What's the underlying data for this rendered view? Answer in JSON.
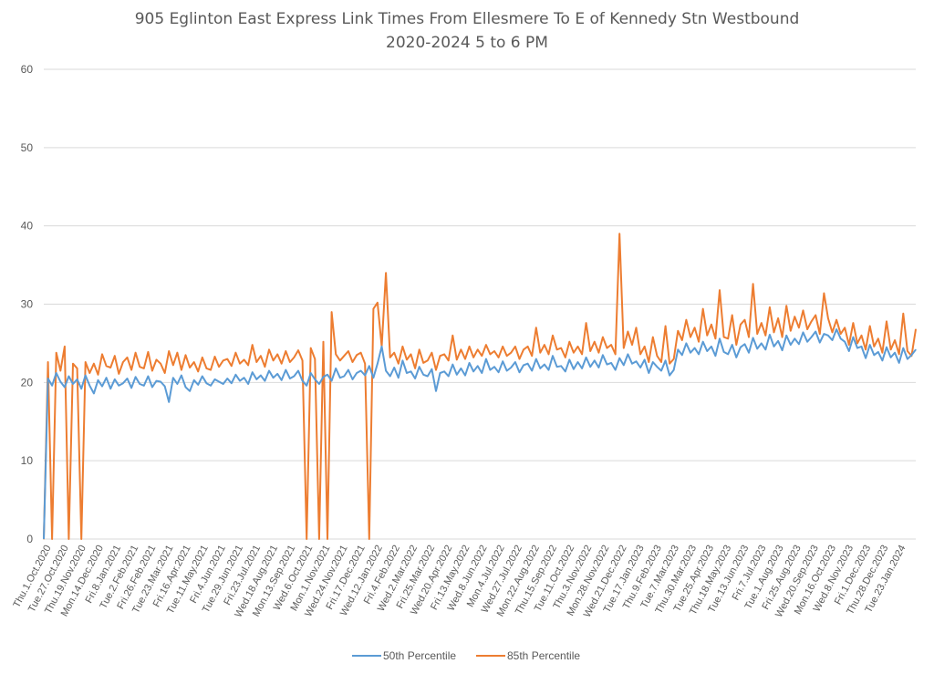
{
  "chart_data": {
    "type": "line",
    "title": "905 Eglinton East Express Link Times From Ellesmere To E of Kennedy Stn Westbound",
    "subtitle": "2020-2024 5 to 6 PM",
    "xlabel": "",
    "ylabel": "",
    "ylim": [
      0,
      60
    ],
    "yticks": [
      0,
      10,
      20,
      30,
      40,
      50,
      60
    ],
    "grid": true,
    "legend_position": "bottom",
    "colors": {
      "p50": "#5b9bd5",
      "p85": "#ed7d31",
      "grid": "#d9d9d9",
      "text": "#595959"
    },
    "x_tick_labels": [
      "Thu.1.Oct.2020",
      "Tue.27.Oct.2020",
      "Thu.19.Nov.2020",
      "Mon.14.Dec.2020",
      "Fri.8.Jan.2021",
      "Tue.2.Feb.2021",
      "Fri.26.Feb.2021",
      "Tue.23.Mar.2021",
      "Fri.16.Apr.2021",
      "Tue.11.May.2021",
      "Fri.4.Jun.2021",
      "Tue.29.Jun.2021",
      "Fri.23.Jul.2021",
      "Wed.18.Aug.2021",
      "Mon.13.Sep.2021",
      "Wed.6.Oct.2021",
      "Mon.1.Nov.2021",
      "Wed.24.Nov.2021",
      "Fri.17.Dec.2021",
      "Wed.12.Jan.2022",
      "Fri.4.Feb.2022",
      "Wed.2.Mar.2022",
      "Fri.25.Mar.2022",
      "Wed.20.Apr.2022",
      "Fri.13.May.2022",
      "Wed.8.Jun.2022",
      "Mon.4.Jul.2022",
      "Wed.27.Jul.2022",
      "Mon.22.Aug.2022",
      "Thu.15.Sep.2022",
      "Tue.11.Oct.2022",
      "Thu.3.Nov.2022",
      "Mon.28.Nov.2022",
      "Wed.21.Dec.2022",
      "Tue.17.Jan.2023",
      "Thu.9.Feb.2023",
      "Tue.7.Mar.2023",
      "Thu.30.Mar.2023",
      "Tue.25.Apr.2023",
      "Thu.18.May.2023",
      "Tue.13.Jun.2023",
      "Fri.7.Jul.2023",
      "Tue.1.Aug.2023",
      "Fri.25.Aug.2023",
      "Wed.20.Sep.2023",
      "Mon.16.Oct.2023",
      "Wed.8.Nov.2023",
      "Fri.1.Dec.2023",
      "Thu.28.Dec.2023",
      "Tue.23.Jan.2024"
    ],
    "points_per_tick": 4,
    "series": [
      {
        "name": "50th Percentile",
        "values": [
          0,
          20.5,
          19.6,
          21.2,
          20.1,
          19.4,
          20.8,
          19.8,
          20.4,
          19.2,
          20.9,
          19.6,
          18.6,
          20.3,
          19.5,
          20.6,
          19.2,
          20.4,
          19.6,
          19.9,
          20.5,
          19.3,
          20.7,
          19.8,
          19.6,
          20.8,
          19.4,
          20.2,
          20.1,
          19.5,
          17.5,
          20.6,
          19.8,
          20.9,
          19.4,
          18.9,
          20.3,
          19.7,
          20.8,
          19.9,
          19.6,
          20.4,
          20.1,
          19.8,
          20.5,
          19.9,
          21.0,
          20.2,
          20.6,
          19.8,
          21.3,
          20.4,
          20.9,
          20.2,
          21.5,
          20.6,
          21.1,
          20.3,
          21.6,
          20.5,
          20.8,
          21.5,
          20.2,
          19.6,
          21.2,
          20.4,
          19.8,
          20.7,
          21.0,
          20.2,
          21.8,
          20.6,
          20.8,
          21.6,
          20.4,
          21.2,
          21.5,
          20.9,
          22.1,
          20.6,
          22.4,
          24.6,
          21.5,
          20.8,
          21.9,
          20.6,
          22.8,
          21.2,
          21.4,
          20.5,
          22.0,
          21.0,
          20.8,
          21.7,
          18.9,
          21.2,
          21.4,
          20.8,
          22.3,
          21.0,
          21.8,
          20.9,
          22.5,
          21.4,
          22.1,
          21.2,
          23.0,
          21.6,
          22.0,
          21.3,
          22.7,
          21.5,
          21.9,
          22.6,
          21.3,
          22.2,
          22.4,
          21.5,
          23.0,
          21.8,
          22.3,
          21.6,
          23.4,
          22.0,
          22.1,
          21.4,
          22.9,
          21.7,
          22.6,
          21.8,
          23.2,
          22.0,
          22.8,
          21.9,
          23.5,
          22.3,
          22.5,
          21.6,
          23.1,
          22.2,
          23.6,
          22.4,
          22.7,
          21.9,
          22.9,
          21.2,
          22.6,
          22.0,
          21.5,
          22.8,
          20.9,
          21.6,
          24.2,
          23.5,
          25.0,
          23.8,
          24.4,
          23.6,
          25.2,
          24.0,
          24.6,
          23.4,
          25.6,
          23.9,
          23.6,
          24.8,
          23.2,
          24.5,
          24.9,
          23.8,
          25.7,
          24.3,
          25.0,
          24.2,
          26.1,
          24.6,
          25.3,
          24.1,
          26.0,
          24.8,
          25.6,
          24.9,
          26.4,
          25.2,
          25.8,
          26.5,
          25.1,
          26.2,
          26.0,
          25.4,
          26.8,
          25.6,
          25.2,
          24.0,
          25.8,
          24.4,
          24.6,
          23.1,
          24.8,
          23.5,
          23.9,
          22.8,
          24.5,
          23.2,
          23.8,
          22.5,
          24.4,
          23.0,
          23.5,
          24.2
        ]
      },
      {
        "name": "85th Percentile",
        "values": [
          0,
          22.6,
          0,
          23.8,
          21.5,
          24.6,
          0,
          22.4,
          21.8,
          0,
          22.6,
          21.2,
          22.4,
          21.0,
          23.6,
          22.1,
          21.9,
          23.4,
          21.1,
          22.6,
          23.2,
          21.6,
          23.8,
          22.0,
          21.8,
          23.9,
          21.5,
          22.9,
          22.4,
          21.2,
          24.0,
          22.2,
          23.8,
          21.6,
          23.5,
          21.9,
          22.6,
          21.4,
          23.2,
          21.8,
          21.6,
          23.3,
          22.0,
          22.8,
          23.0,
          22.1,
          23.8,
          22.4,
          22.9,
          22.2,
          24.8,
          22.6,
          23.4,
          22.0,
          24.2,
          22.8,
          23.6,
          22.4,
          24.0,
          22.6,
          23.2,
          24.1,
          22.8,
          0,
          24.4,
          23.0,
          0,
          25.2,
          0,
          29.0,
          23.6,
          22.8,
          23.4,
          24.0,
          22.6,
          23.5,
          23.8,
          22.4,
          0,
          29.4,
          30.2,
          24.6,
          34.0,
          23.2,
          23.8,
          22.4,
          24.6,
          22.9,
          23.6,
          21.8,
          24.2,
          22.5,
          22.8,
          23.8,
          21.6,
          23.4,
          23.6,
          22.8,
          26.0,
          22.9,
          24.2,
          23.0,
          24.6,
          23.2,
          24.2,
          23.4,
          24.8,
          23.6,
          24.0,
          23.2,
          24.6,
          23.4,
          23.8,
          24.6,
          23.0,
          24.2,
          24.6,
          23.4,
          27.0,
          23.8,
          24.8,
          23.6,
          26.0,
          24.2,
          24.4,
          23.2,
          25.2,
          23.8,
          24.6,
          23.6,
          27.6,
          24.0,
          25.2,
          23.8,
          25.8,
          24.4,
          24.8,
          23.6,
          39.0,
          24.4,
          26.5,
          24.8,
          27.0,
          23.6,
          24.6,
          22.6,
          25.8,
          23.4,
          22.6,
          27.2,
          22.4,
          23.0,
          26.6,
          25.4,
          28.0,
          25.8,
          27.0,
          25.2,
          29.4,
          26.0,
          27.4,
          25.6,
          31.8,
          25.8,
          25.6,
          28.6,
          24.8,
          27.4,
          28.0,
          25.8,
          32.6,
          26.2,
          27.6,
          26.0,
          29.6,
          26.4,
          28.2,
          25.8,
          29.8,
          26.6,
          28.4,
          27.0,
          29.2,
          26.8,
          27.8,
          28.6,
          26.2,
          31.4,
          28.2,
          26.4,
          28.0,
          26.2,
          27.0,
          24.8,
          27.6,
          25.0,
          26.0,
          24.2,
          27.2,
          24.6,
          25.6,
          23.8,
          27.8,
          24.2,
          25.4,
          23.6,
          28.8,
          24.0,
          23.4,
          26.8
        ]
      }
    ]
  }
}
